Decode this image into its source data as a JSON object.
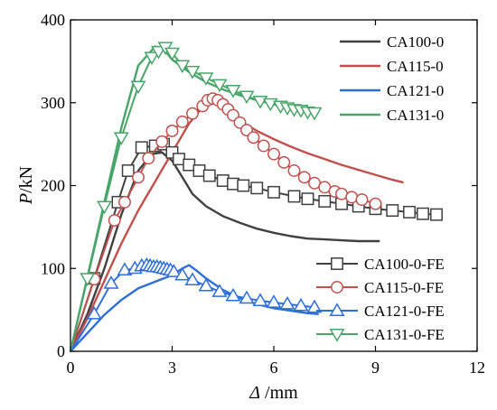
{
  "chart_data": {
    "type": "line",
    "title": "",
    "xlabel": "Δ /mm",
    "ylabel": "P/kN",
    "xlim": [
      0,
      12
    ],
    "ylim": [
      0,
      400
    ],
    "xticks": [
      0,
      3,
      6,
      9,
      12
    ],
    "yticks": [
      0,
      100,
      200,
      300,
      400
    ],
    "grid": false,
    "legends": [
      {
        "placement": "top-right",
        "entries": [
          "CA100-0",
          "CA115-0",
          "CA121-0",
          "CA131-0"
        ]
      },
      {
        "placement": "bottom-right",
        "entries": [
          "CA100-0-FE",
          "CA115-0-FE",
          "CA121-0-FE",
          "CA131-0-FE"
        ]
      }
    ],
    "series": [
      {
        "name": "CA100-0",
        "color": "#404040",
        "marker": "none",
        "x": [
          0,
          0.5,
          1.0,
          1.5,
          2.0,
          2.4,
          2.7,
          3.0,
          3.3,
          3.6,
          4.0,
          4.5,
          5.0,
          5.5,
          6.0,
          6.5,
          7.0,
          7.5,
          8.0,
          8.5,
          9.0,
          9.1
        ],
        "y": [
          0,
          45,
          100,
          165,
          218,
          238,
          240,
          230,
          210,
          190,
          175,
          163,
          155,
          148,
          143,
          139,
          136,
          135,
          134,
          133,
          133,
          133
        ]
      },
      {
        "name": "CA115-0",
        "color": "#c0504d",
        "marker": "none",
        "x": [
          0,
          0.5,
          1.0,
          1.5,
          2.0,
          2.5,
          3.0,
          3.5,
          3.9,
          4.1,
          4.3,
          4.6,
          5.0,
          5.5,
          6.0,
          6.5,
          7.0,
          7.5,
          8.0,
          8.5,
          9.0,
          9.5,
          9.8
        ],
        "y": [
          0,
          40,
          85,
          130,
          170,
          205,
          240,
          275,
          295,
          303,
          302,
          290,
          278,
          266,
          256,
          247,
          239,
          232,
          225,
          219,
          213,
          207,
          204
        ]
      },
      {
        "name": "CA121-0",
        "color": "#2e6fd6",
        "marker": "none",
        "x": [
          0,
          0.5,
          1.0,
          1.5,
          2.0,
          2.5,
          3.0,
          3.3,
          3.5,
          3.7,
          4.0,
          4.5,
          5.0,
          5.5,
          6.0,
          6.5,
          7.0,
          7.3
        ],
        "y": [
          0,
          22,
          44,
          62,
          76,
          84,
          92,
          100,
          104,
          98,
          88,
          74,
          64,
          57,
          52,
          49,
          46,
          45
        ]
      },
      {
        "name": "CA131-0",
        "color": "#4aa56a",
        "marker": "none",
        "x": [
          0,
          0.5,
          1.0,
          1.5,
          2.0,
          2.5,
          2.8,
          3.0,
          3.5,
          4.0,
          4.5,
          5.0,
          5.5,
          6.0,
          6.5,
          7.0,
          7.3
        ],
        "y": [
          0,
          90,
          180,
          270,
          345,
          368,
          362,
          352,
          337,
          325,
          316,
          309,
          303,
          298,
          294,
          290,
          288
        ]
      },
      {
        "name": "CA100-0-FE",
        "color": "#404040",
        "marker": "square",
        "x": [
          0,
          0.7,
          1.4,
          1.7,
          2.1,
          2.5,
          2.75,
          3.0,
          3.2,
          3.5,
          3.8,
          4.1,
          4.5,
          4.8,
          5.1,
          5.5,
          6.0,
          6.6,
          7.0,
          7.5,
          8.0,
          8.5,
          9.0,
          9.5,
          10.0,
          10.4,
          10.8
        ],
        "y": [
          0,
          88,
          180,
          218,
          246,
          248,
          250,
          240,
          232,
          225,
          218,
          212,
          206,
          202,
          200,
          197,
          192,
          187,
          184,
          181,
          178,
          175,
          172,
          170,
          168,
          166,
          165
        ]
      },
      {
        "name": "CA115-0-FE",
        "color": "#c0504d",
        "marker": "circle",
        "x": [
          0,
          0.7,
          1.3,
          1.6,
          2.0,
          2.3,
          2.7,
          3.0,
          3.3,
          3.6,
          3.9,
          4.05,
          4.2,
          4.35,
          4.5,
          4.65,
          4.8,
          5.0,
          5.2,
          5.4,
          5.7,
          6.0,
          6.3,
          6.6,
          6.9,
          7.2,
          7.5,
          7.8,
          8.0,
          8.3,
          8.6,
          9.0
        ],
        "y": [
          0,
          87,
          158,
          180,
          210,
          233,
          253,
          266,
          277,
          287,
          296,
          303,
          305,
          303,
          298,
          292,
          285,
          276,
          267,
          258,
          248,
          238,
          228,
          218,
          210,
          203,
          198,
          193,
          190,
          186,
          183,
          178
        ]
      },
      {
        "name": "CA121-0-FE",
        "color": "#2e6fd6",
        "marker": "triangle",
        "x": [
          0,
          0.7,
          1.2,
          1.6,
          1.9,
          2.1,
          2.25,
          2.35,
          2.45,
          2.55,
          2.65,
          2.75,
          2.85,
          2.95,
          3.05,
          3.3,
          3.6,
          4.0,
          4.4,
          4.8,
          5.2,
          5.6,
          6.0,
          6.4,
          6.8,
          7.2
        ],
        "y": [
          0,
          45,
          82,
          98,
          100,
          103,
          104,
          103,
          102,
          102,
          101,
          100,
          99,
          98,
          96,
          92,
          86,
          79,
          72,
          67,
          64,
          61,
          59,
          57,
          55,
          53
        ]
      },
      {
        "name": "CA131-0-FE",
        "color": "#4aa56a",
        "marker": "triangle-down",
        "x": [
          0,
          0.5,
          1.0,
          1.5,
          2.0,
          2.4,
          2.6,
          2.8,
          3.0,
          3.3,
          3.6,
          4.0,
          4.4,
          4.8,
          5.2,
          5.6,
          5.9,
          6.2,
          6.4,
          6.6,
          6.8,
          7.0,
          7.2
        ],
        "y": [
          0,
          88,
          175,
          258,
          320,
          355,
          362,
          367,
          360,
          345,
          338,
          330,
          322,
          315,
          308,
          302,
          299,
          296,
          294,
          292,
          291,
          289,
          288
        ]
      }
    ]
  }
}
